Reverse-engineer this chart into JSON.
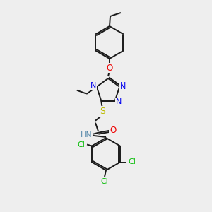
{
  "background_color": "#eeeeee",
  "bond_color": "#1a1a1a",
  "atom_colors": {
    "N": "#0000ee",
    "O": "#ee0000",
    "S": "#bbbb00",
    "Cl": "#00bb00",
    "NH": "#5588aa"
  },
  "figsize": [
    3.0,
    3.0
  ],
  "dpi": 100,
  "lw": 1.4,
  "fontsize": 7.5
}
